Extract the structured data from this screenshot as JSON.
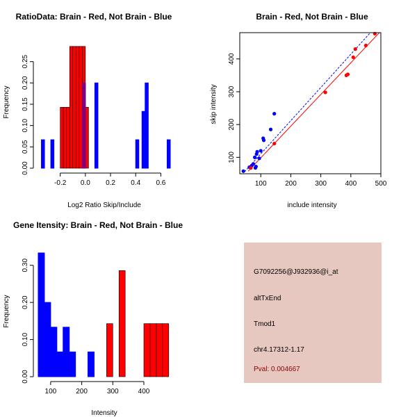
{
  "colors": {
    "brain": "#ff0000",
    "not_brain": "#0000ff",
    "overlap": "#7f007f",
    "panel_bg": "#e6c8c0",
    "pval_text": "#8b0000"
  },
  "info": {
    "probe_id": "G7092256@J932936@i_at",
    "event_type": "altTxEnd",
    "gene": "Tmod1",
    "location": "chr4.17312-1.17",
    "pval": "Pval: 0.004667"
  },
  "chart_data": [
    {
      "id": "ratio",
      "type": "bar",
      "title": "RatioData: Brain - Red, Not Brain - Blue",
      "xlabel": "Log2 Ratio Skip/Include",
      "ylabel": "Frequency",
      "xlim": [
        -0.375,
        0.675
      ],
      "ylim": [
        0,
        0.3
      ],
      "xticks": [
        -0.2,
        0.0,
        0.2,
        0.4,
        0.6
      ],
      "xtick_labels": [
        "-0.2",
        "0.0",
        "0.2",
        "0.4",
        "0.6"
      ],
      "yticks": [
        0,
        0.05,
        0.1,
        0.15,
        0.2,
        0.25
      ],
      "ytick_labels": [
        "0.00",
        "0.05",
        "0.10",
        "0.15",
        "0.20",
        "0.25"
      ],
      "series": [
        {
          "name": "Not Brain",
          "color": "not_brain",
          "bins": [
            [
              -0.35,
              -0.325,
              0.0667
            ],
            [
              -0.275,
              -0.25,
              0.0667
            ],
            [
              -0.025,
              0.0,
              0.2
            ],
            [
              0.075,
              0.1,
              0.2
            ],
            [
              0.4,
              0.425,
              0.0667
            ],
            [
              0.45,
              0.475,
              0.1333
            ],
            [
              0.475,
              0.5,
              0.2
            ],
            [
              0.65,
              0.675,
              0.0667
            ]
          ]
        },
        {
          "name": "Brain",
          "color": "brain",
          "bins": [
            [
              -0.2,
              -0.175,
              0.1429
            ],
            [
              -0.175,
              -0.15,
              0.1429
            ],
            [
              -0.15,
              -0.125,
              0.1429
            ],
            [
              -0.125,
              -0.1,
              0.2857
            ],
            [
              -0.1,
              -0.075,
              0.2857
            ],
            [
              -0.075,
              -0.05,
              0.2857
            ],
            [
              -0.05,
              -0.025,
              0.2857
            ],
            [
              -0.025,
              0.0,
              0.2857
            ],
            [
              0.0,
              0.025,
              0.1429
            ]
          ]
        }
      ]
    },
    {
      "id": "scatter",
      "type": "scatter",
      "title": "Brain - Red, Not Brain - Blue",
      "xlabel": "include intensity",
      "ylabel": "skip intensity",
      "xlim": [
        30,
        500
      ],
      "ylim": [
        50,
        480
      ],
      "xticks": [
        100,
        200,
        300,
        400,
        500
      ],
      "xtick_labels": [
        "100",
        "200",
        "300",
        "400",
        "500"
      ],
      "yticks": [
        100,
        200,
        300,
        400
      ],
      "ytick_labels": [
        "100",
        "200",
        "300",
        "400"
      ],
      "series": [
        {
          "name": "Not Brain",
          "color": "not_brain",
          "points": [
            [
              42,
              58
            ],
            [
              62,
              70
            ],
            [
              70,
              75
            ],
            [
              75,
              80
            ],
            [
              80,
              100
            ],
            [
              82,
              68
            ],
            [
              84,
              72
            ],
            [
              86,
              110
            ],
            [
              88,
              117
            ],
            [
              95,
              97
            ],
            [
              100,
              120
            ],
            [
              108,
              158
            ],
            [
              110,
              152
            ],
            [
              133,
              185
            ],
            [
              145,
              233
            ]
          ],
          "fit": [
            [
              46,
              56
            ],
            [
              465,
              480
            ]
          ]
        },
        {
          "name": "Brain",
          "color": "brain",
          "points": [
            [
              67,
              68
            ],
            [
              145,
              142
            ],
            [
              315,
              298
            ],
            [
              385,
              350
            ],
            [
              390,
              353
            ],
            [
              408,
              405
            ],
            [
              415,
              430
            ],
            [
              450,
              441
            ],
            [
              480,
              477
            ]
          ],
          "fit": [
            [
              58,
              58
            ],
            [
              495,
              480
            ]
          ]
        }
      ]
    },
    {
      "id": "intensity",
      "type": "bar",
      "title": "Gene Itensity: Brain - Red, Not Brain - Blue",
      "xlabel": "Intensity",
      "ylabel": "Frequency",
      "xlim": [
        60,
        485
      ],
      "ylim": [
        0,
        0.35
      ],
      "xticks": [
        100,
        200,
        300,
        400
      ],
      "xtick_labels": [
        "100",
        "200",
        "300",
        "400"
      ],
      "yticks": [
        0,
        0.1,
        0.2,
        0.3
      ],
      "ytick_labels": [
        "0.00",
        "0.10",
        "0.20",
        "0.30"
      ],
      "series": [
        {
          "name": "Not Brain",
          "color": "not_brain",
          "bins": [
            [
              60,
              80,
              0.3333
            ],
            [
              80,
              100,
              0.2
            ],
            [
              100,
              120,
              0.1333
            ],
            [
              120,
              140,
              0.0667
            ],
            [
              140,
              160,
              0.1333
            ],
            [
              160,
              180,
              0.0667
            ],
            [
              220,
              240,
              0.0667
            ]
          ]
        },
        {
          "name": "Brain",
          "color": "brain",
          "bins": [
            [
              280,
              300,
              0.1429
            ],
            [
              320,
              340,
              0.2857
            ],
            [
              400,
              420,
              0.1429
            ],
            [
              420,
              440,
              0.1429
            ],
            [
              440,
              460,
              0.1429
            ],
            [
              460,
              480,
              0.1429
            ]
          ]
        }
      ]
    }
  ]
}
